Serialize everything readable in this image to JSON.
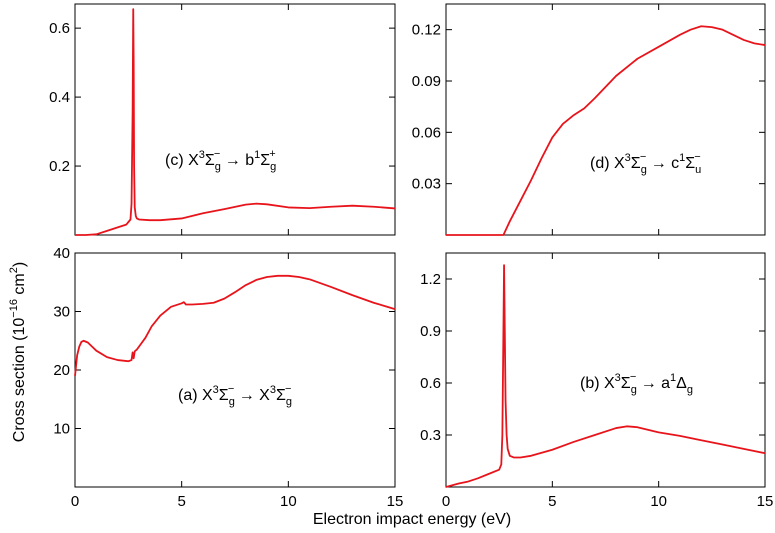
{
  "axes": {
    "xlabel": "Electron impact energy (eV)",
    "ylabel": "Cross section (10",
    "ylabel_exp": "−16",
    "ylabel_unit": " cm",
    "ylabel_unit_exp": "2",
    "ylabel_close": ")"
  },
  "chart_data": [
    {
      "id": "c",
      "type": "line",
      "label": {
        "tag": "(c)",
        "lower": "X",
        "lower_mult": "3",
        "lower_sym": "Σ",
        "lower_sub": "g",
        "lower_sup": "−",
        "arrow": "→",
        "upper": "b",
        "upper_mult": "1",
        "upper_sym": "Σ",
        "upper_sub": "g",
        "upper_sup": "+"
      },
      "xlim": [
        0,
        15
      ],
      "ylim": [
        0,
        0.67
      ],
      "xticks": [
        0,
        5,
        10,
        15
      ],
      "yticks": [
        0.2,
        0.4,
        0.6
      ],
      "ytick_labels": [
        "0.2",
        "0.4",
        "0.6"
      ],
      "x": [
        0,
        0.5,
        1,
        1.5,
        2,
        2.4,
        2.6,
        2.65,
        2.7,
        2.73,
        2.75,
        2.77,
        2.8,
        2.85,
        2.9,
        3,
        3.5,
        4,
        5,
        6,
        7,
        8,
        8.5,
        9,
        10,
        11,
        12,
        13,
        14,
        15
      ],
      "y": [
        0,
        0,
        0.002,
        0.012,
        0.022,
        0.03,
        0.045,
        0.09,
        0.35,
        0.655,
        0.5,
        0.2,
        0.08,
        0.055,
        0.048,
        0.045,
        0.043,
        0.043,
        0.048,
        0.063,
        0.075,
        0.088,
        0.091,
        0.089,
        0.08,
        0.078,
        0.082,
        0.085,
        0.082,
        0.077
      ]
    },
    {
      "id": "d",
      "type": "line",
      "label": {
        "tag": "(d)",
        "lower": "X",
        "lower_mult": "3",
        "lower_sym": "Σ",
        "lower_sub": "g",
        "lower_sup": "−",
        "arrow": "→",
        "upper": "c",
        "upper_mult": "1",
        "upper_sym": "Σ",
        "upper_sub": "u",
        "upper_sup": "−"
      },
      "xlim": [
        0,
        15
      ],
      "ylim": [
        0,
        0.135
      ],
      "xticks": [
        0,
        5,
        10,
        15
      ],
      "yticks": [
        0.03,
        0.06,
        0.09,
        0.12
      ],
      "ytick_labels": [
        "0.03",
        "0.06",
        "0.09",
        "0.12"
      ],
      "x": [
        0,
        1,
        2,
        2.5,
        2.7,
        3,
        3.5,
        4,
        4.5,
        5,
        5.5,
        5.8,
        6,
        6.5,
        7,
        8,
        9,
        10,
        11,
        11.5,
        12,
        12.5,
        13,
        13.5,
        14,
        14.5,
        15
      ],
      "y": [
        0,
        0,
        0,
        0,
        0,
        0.008,
        0.02,
        0.032,
        0.045,
        0.057,
        0.065,
        0.068,
        0.07,
        0.074,
        0.08,
        0.093,
        0.103,
        0.11,
        0.117,
        0.12,
        0.122,
        0.1215,
        0.12,
        0.117,
        0.114,
        0.112,
        0.111
      ]
    },
    {
      "id": "a",
      "type": "line",
      "label": {
        "tag": "(a)",
        "lower": "X",
        "lower_mult": "3",
        "lower_sym": "Σ",
        "lower_sub": "g",
        "lower_sup": "−",
        "arrow": "→",
        "upper": "X",
        "upper_mult": "3",
        "upper_sym": "Σ",
        "upper_sub": "g",
        "upper_sup": "−"
      },
      "xlim": [
        0,
        15
      ],
      "ylim": [
        0,
        40
      ],
      "xticks": [
        0,
        5,
        10,
        15
      ],
      "xtick_labels": [
        "0",
        "5",
        "10",
        "15"
      ],
      "yticks": [
        10,
        20,
        30,
        40
      ],
      "ytick_labels": [
        "10",
        "20",
        "30",
        "40"
      ],
      "x": [
        0,
        0.1,
        0.2,
        0.3,
        0.4,
        0.6,
        0.8,
        1,
        1.5,
        2,
        2.5,
        2.65,
        2.7,
        2.75,
        2.8,
        2.9,
        3,
        3.3,
        3.6,
        4,
        4.5,
        5,
        5.1,
        5.2,
        5.5,
        6,
        6.5,
        7,
        7.5,
        8,
        8.5,
        9,
        9.5,
        10,
        10.5,
        11,
        12,
        13,
        14,
        15
      ],
      "y": [
        19,
        22.5,
        24,
        24.8,
        25,
        24.7,
        24,
        23.3,
        22.2,
        21.7,
        21.5,
        21.7,
        23,
        22,
        23.2,
        23.5,
        24,
        25.5,
        27.5,
        29.3,
        30.8,
        31.4,
        31.6,
        31.2,
        31.2,
        31.3,
        31.5,
        32.2,
        33.3,
        34.5,
        35.4,
        35.9,
        36.1,
        36.1,
        35.9,
        35.5,
        34.2,
        32.8,
        31.5,
        30.4
      ]
    },
    {
      "id": "b",
      "type": "line",
      "label": {
        "tag": "(b)",
        "lower": "X",
        "lower_mult": "3",
        "lower_sym": "Σ",
        "lower_sub": "g",
        "lower_sup": "−",
        "arrow": "→",
        "upper": "a",
        "upper_mult": "1",
        "upper_sym": "Δ",
        "upper_sub": "g",
        "upper_sup": ""
      },
      "xlim": [
        0,
        15
      ],
      "ylim": [
        0,
        1.35
      ],
      "xticks": [
        0,
        5,
        10,
        15
      ],
      "xtick_labels": [
        "0",
        "5",
        "10",
        "15"
      ],
      "yticks": [
        0.3,
        0.6,
        0.9,
        1.2
      ],
      "ytick_labels": [
        "0.3",
        "0.6",
        "0.9",
        "1.2"
      ],
      "x": [
        0,
        0.3,
        0.6,
        1,
        1.5,
        2,
        2.5,
        2.6,
        2.65,
        2.7,
        2.73,
        2.76,
        2.8,
        2.85,
        2.9,
        3,
        3.2,
        3.5,
        4,
        5,
        6,
        7,
        8,
        8.5,
        9,
        10,
        11,
        12,
        13,
        14,
        15
      ],
      "y": [
        0,
        0.01,
        0.02,
        0.03,
        0.05,
        0.075,
        0.1,
        0.13,
        0.3,
        0.9,
        1.28,
        0.95,
        0.5,
        0.3,
        0.22,
        0.18,
        0.17,
        0.17,
        0.18,
        0.215,
        0.26,
        0.3,
        0.34,
        0.35,
        0.345,
        0.315,
        0.295,
        0.27,
        0.245,
        0.22,
        0.195
      ]
    }
  ]
}
